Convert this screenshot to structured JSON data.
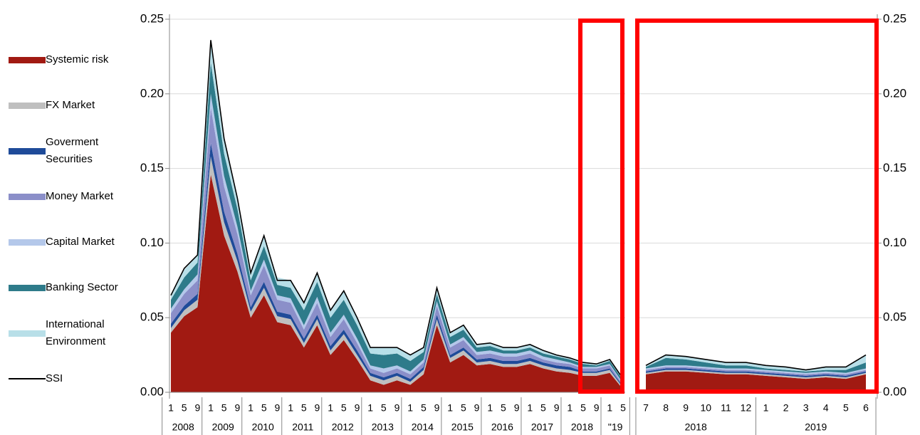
{
  "chart_data": {
    "type": "stacked-area",
    "categories": [
      "1",
      "5",
      "9",
      "1",
      "5",
      "9",
      "1",
      "5",
      "9",
      "1",
      "5",
      "9",
      "1",
      "5",
      "9",
      "1",
      "5",
      "9",
      "1",
      "5",
      "9",
      "1",
      "5",
      "9",
      "1",
      "5",
      "9",
      "1",
      "5",
      "9",
      "1",
      "5",
      "9",
      "1",
      "5"
    ],
    "years": [
      "2008",
      null,
      null,
      "2009",
      null,
      null,
      "2010",
      null,
      null,
      "2011",
      null,
      null,
      "2012",
      null,
      null,
      "2013",
      null,
      null,
      "2014",
      null,
      null,
      "2015",
      null,
      null,
      "2016",
      null,
      null,
      "2017",
      null,
      null,
      "2018",
      null,
      null,
      "\"19",
      null
    ],
    "zoom_categories": [
      "7",
      "8",
      "9",
      "10",
      "11",
      "12",
      "1",
      "2",
      "3",
      "4",
      "5",
      "6"
    ],
    "zoom_years": [
      "2018",
      null,
      null,
      null,
      null,
      null,
      "2019",
      null,
      null,
      null,
      null,
      null
    ],
    "series": [
      {
        "name": "Systemic risk",
        "color": "#a11a12",
        "values": [
          0.04,
          0.051,
          0.057,
          0.146,
          0.105,
          0.081,
          0.05,
          0.065,
          0.047,
          0.045,
          0.03,
          0.045,
          0.025,
          0.035,
          0.022,
          0.008,
          0.005,
          0.008,
          0.005,
          0.012,
          0.045,
          0.02,
          0.025,
          0.018,
          0.019,
          0.017,
          0.017,
          0.019,
          0.016,
          0.014,
          0.013,
          0.011,
          0.011,
          0.013,
          0.002
        ],
        "zoom_values": [
          0.012,
          0.014,
          0.014,
          0.013,
          0.012,
          0.012,
          0.011,
          0.01,
          0.009,
          0.01,
          0.009,
          0.012
        ]
      },
      {
        "name": "FX Market",
        "color": "#bfbfbf",
        "values": [
          0.003,
          0.004,
          0.005,
          0.012,
          0.009,
          0.007,
          0.004,
          0.005,
          0.004,
          0.004,
          0.003,
          0.004,
          0.003,
          0.004,
          0.003,
          0.003,
          0.003,
          0.003,
          0.002,
          0.003,
          0.004,
          0.003,
          0.003,
          0.002,
          0.002,
          0.002,
          0.002,
          0.002,
          0.002,
          0.002,
          0.002,
          0.002,
          0.002,
          0.002,
          0.001
        ],
        "zoom_values": [
          0.001,
          0.001,
          0.001,
          0.001,
          0.001,
          0.001,
          0.001,
          0.001,
          0.001,
          0.001,
          0.001,
          0.001
        ]
      },
      {
        "name": "Goverment Securities",
        "color": "#1f4b99",
        "values": [
          0.003,
          0.003,
          0.004,
          0.009,
          0.007,
          0.005,
          0.003,
          0.004,
          0.003,
          0.003,
          0.003,
          0.003,
          0.003,
          0.003,
          0.003,
          0.002,
          0.002,
          0.002,
          0.002,
          0.002,
          0.003,
          0.002,
          0.002,
          0.002,
          0.002,
          0.002,
          0.002,
          0.002,
          0.002,
          0.002,
          0.002,
          0.001,
          0.001,
          0.001,
          0.001
        ],
        "zoom_values": [
          0.001,
          0.001,
          0.001,
          0.001,
          0.001,
          0.001,
          0.001,
          0.001,
          0.001,
          0.001,
          0.001,
          0.001
        ]
      },
      {
        "name": "Money Market",
        "color": "#8b8fc9",
        "values": [
          0.007,
          0.008,
          0.009,
          0.024,
          0.017,
          0.013,
          0.008,
          0.011,
          0.008,
          0.008,
          0.006,
          0.008,
          0.006,
          0.007,
          0.005,
          0.003,
          0.003,
          0.003,
          0.003,
          0.003,
          0.006,
          0.005,
          0.005,
          0.003,
          0.003,
          0.003,
          0.003,
          0.003,
          0.002,
          0.002,
          0.002,
          0.002,
          0.002,
          0.002,
          0.001
        ],
        "zoom_values": [
          0.001,
          0.001,
          0.001,
          0.001,
          0.001,
          0.001,
          0.001,
          0.001,
          0.001,
          0.001,
          0.001,
          0.001
        ]
      },
      {
        "name": "Capital Market",
        "color": "#b4c8ea",
        "values": [
          0.003,
          0.003,
          0.004,
          0.009,
          0.007,
          0.005,
          0.003,
          0.004,
          0.003,
          0.003,
          0.003,
          0.004,
          0.003,
          0.003,
          0.003,
          0.002,
          0.003,
          0.002,
          0.002,
          0.002,
          0.003,
          0.002,
          0.002,
          0.002,
          0.002,
          0.002,
          0.002,
          0.002,
          0.002,
          0.002,
          0.001,
          0.001,
          0.001,
          0.001,
          0.001
        ],
        "zoom_values": [
          0.001,
          0.001,
          0.001,
          0.001,
          0.001,
          0.001,
          0.001,
          0.001,
          0.001,
          0.001,
          0.001,
          0.001
        ]
      },
      {
        "name": "Banking Sector",
        "color": "#2e7b8a",
        "values": [
          0.006,
          0.008,
          0.008,
          0.021,
          0.015,
          0.012,
          0.007,
          0.009,
          0.007,
          0.007,
          0.01,
          0.01,
          0.01,
          0.01,
          0.009,
          0.008,
          0.009,
          0.008,
          0.007,
          0.005,
          0.005,
          0.005,
          0.005,
          0.003,
          0.003,
          0.002,
          0.002,
          0.002,
          0.002,
          0.002,
          0.002,
          0.002,
          0.001,
          0.002,
          0.002
        ],
        "zoom_values": [
          0.001,
          0.005,
          0.004,
          0.003,
          0.002,
          0.002,
          0.001,
          0.001,
          0.001,
          0.001,
          0.002,
          0.004
        ]
      },
      {
        "name": "International Environment",
        "color": "#b8dfe8",
        "values": [
          0.004,
          0.005,
          0.005,
          0.014,
          0.01,
          0.008,
          0.005,
          0.006,
          0.005,
          0.005,
          0.005,
          0.006,
          0.005,
          0.006,
          0.005,
          0.004,
          0.005,
          0.004,
          0.004,
          0.003,
          0.004,
          0.003,
          0.003,
          0.002,
          0.002,
          0.002,
          0.002,
          0.002,
          0.002,
          0.001,
          0.001,
          0.001,
          0.001,
          0.001,
          0.001
        ],
        "zoom_values": [
          0.001,
          0.002,
          0.002,
          0.002,
          0.002,
          0.002,
          0.002,
          0.002,
          0.001,
          0.002,
          0.002,
          0.005
        ]
      },
      {
        "name": "SSI",
        "color": "#000000",
        "type": "line",
        "values": [
          0.065,
          0.083,
          0.092,
          0.236,
          0.17,
          0.13,
          0.08,
          0.105,
          0.075,
          0.075,
          0.06,
          0.08,
          0.055,
          0.068,
          0.05,
          0.03,
          0.03,
          0.03,
          0.025,
          0.03,
          0.07,
          0.04,
          0.045,
          0.032,
          0.033,
          0.03,
          0.03,
          0.032,
          0.028,
          0.025,
          0.023,
          0.02,
          0.019,
          0.022,
          0.009
        ],
        "zoom_values": [
          0.018,
          0.025,
          0.024,
          0.022,
          0.02,
          0.02,
          0.018,
          0.017,
          0.015,
          0.017,
          0.017,
          0.025
        ]
      }
    ],
    "ylim": [
      0,
      0.25
    ],
    "yticks": [
      {
        "value": 0,
        "label": "0.00"
      },
      {
        "value": 0.05,
        "label": "0.05"
      },
      {
        "value": 0.1,
        "label": "0.10"
      },
      {
        "value": 0.15,
        "label": "0.15"
      },
      {
        "value": 0.2,
        "label": "0.20"
      },
      {
        "value": 0.25,
        "label": "0.25"
      }
    ],
    "y2lim": [
      0,
      0.25
    ],
    "y2ticks": [
      {
        "value": 0,
        "label": "0.00"
      },
      {
        "value": 0.05,
        "label": "0.05"
      },
      {
        "value": 0.1,
        "label": "0.10"
      },
      {
        "value": 0.15,
        "label": "0.15"
      },
      {
        "value": 0.2,
        "label": "0.20"
      },
      {
        "value": 0.25,
        "label": "0.25"
      }
    ],
    "grid": true,
    "highlight_color": "#ff0000"
  }
}
